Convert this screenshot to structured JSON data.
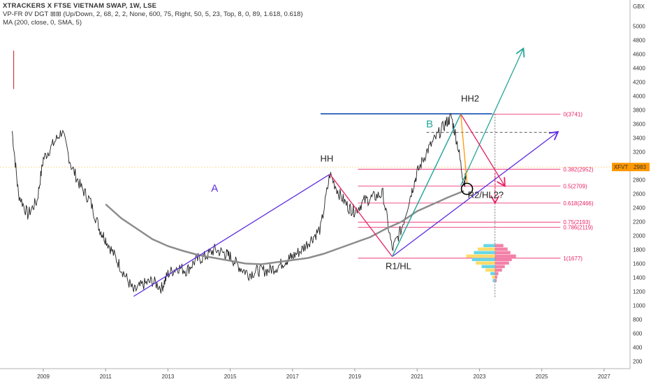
{
  "header": {
    "title": "XTRACKERS X FTSE VIETNAM SWAP, 1W, LSE",
    "indicator_vp": "VP-FR ϑV DGT ⊞⊞ (Up/Down, 2, 68, 2, 2, None, 600, 75, Right, 50, 5, 23, Top, 8, 0, 89, 1.618, 0.618)",
    "indicator_ma": "MA (200, close, 0, SMA, 5)"
  },
  "currency": "GBX",
  "price_tag": {
    "symbol": "XFVT",
    "value": "2983"
  },
  "colors": {
    "fib": "#e91e63",
    "purple": "#5b2be0",
    "teal": "#26a69a",
    "ma": "#8c8c8c",
    "orange": "#ff9800",
    "bar": "#222222"
  },
  "chart_data": {
    "type": "line",
    "title": "XTRACKERS X FTSE VIETNAM SWAP, 1W, LSE",
    "xlabel": "",
    "ylabel": "GBX",
    "x_ticks": [
      "2009",
      "2011",
      "2013",
      "2015",
      "2017",
      "2019",
      "2021",
      "2023",
      "2025",
      "2027"
    ],
    "y_ticks": [
      200,
      400,
      600,
      800,
      1000,
      1200,
      1400,
      1600,
      1800,
      2000,
      2200,
      2400,
      2600,
      2800,
      3000,
      3200,
      3400,
      3600,
      3800,
      4000,
      4200,
      4400,
      4600,
      4800,
      5000
    ],
    "ylim": [
      100,
      5300
    ],
    "xlim": [
      2008.0,
      2027.9
    ],
    "price_series": {
      "name": "",
      "x": [
        2008.0,
        2008.2,
        2008.5,
        2008.8,
        2009.0,
        2009.3,
        2009.6,
        2009.9,
        2010.2,
        2010.5,
        2010.8,
        2011.0,
        2011.3,
        2011.6,
        2011.9,
        2012.2,
        2012.5,
        2012.8,
        2013.0,
        2013.3,
        2013.6,
        2013.9,
        2014.2,
        2014.5,
        2014.8,
        2015.0,
        2015.3,
        2015.6,
        2015.9,
        2016.2,
        2016.5,
        2016.8,
        2017.0,
        2017.3,
        2017.6,
        2017.9,
        2018.2,
        2018.5,
        2018.8,
        2019.0,
        2019.3,
        2019.6,
        2019.9,
        2020.2,
        2020.5,
        2020.8,
        2021.0,
        2021.3,
        2021.6,
        2021.9,
        2022.1,
        2022.3,
        2022.5,
        2022.6
      ],
      "y": [
        3500,
        2600,
        2300,
        2500,
        3100,
        3300,
        3500,
        3000,
        2700,
        2500,
        2100,
        1950,
        1700,
        1450,
        1200,
        1300,
        1350,
        1250,
        1450,
        1550,
        1500,
        1650,
        1700,
        1800,
        1750,
        1700,
        1550,
        1450,
        1500,
        1500,
        1550,
        1650,
        1700,
        1800,
        1950,
        2100,
        2880,
        2600,
        2400,
        2350,
        2500,
        2550,
        2600,
        1800,
        2100,
        2600,
        2900,
        3200,
        3400,
        3600,
        3700,
        3300,
        2750,
        2900
      ]
    },
    "ma_series": {
      "name": "",
      "x": [
        2011.0,
        2011.5,
        2012.0,
        2012.5,
        2013.0,
        2013.5,
        2014.0,
        2014.5,
        2015.0,
        2015.5,
        2016.0,
        2016.5,
        2017.0,
        2017.5,
        2018.0,
        2018.5,
        2019.0,
        2019.5,
        2020.0,
        2020.5,
        2021.0,
        2021.5,
        2022.0,
        2022.5
      ],
      "y": [
        2450,
        2250,
        2100,
        1950,
        1850,
        1780,
        1720,
        1680,
        1640,
        1600,
        1590,
        1620,
        1650,
        1680,
        1740,
        1820,
        1900,
        1980,
        2100,
        2200,
        2350,
        2450,
        2550,
        2640
      ]
    },
    "fib_levels": [
      {
        "ratio": "0",
        "value": 3741,
        "label": "0(3741)"
      },
      {
        "ratio": "0.382",
        "value": 2952,
        "label": "0.382(2952)"
      },
      {
        "ratio": "0.5",
        "value": 2709,
        "label": "0.5(2709)"
      },
      {
        "ratio": "0.618",
        "value": 2466,
        "label": "0.618(2466)"
      },
      {
        "ratio": "0.75",
        "value": 2193,
        "label": "0.75(2193)"
      },
      {
        "ratio": "0.786",
        "value": 2119,
        "label": "0.786(2119)"
      },
      {
        "ratio": "1",
        "value": 1677,
        "label": "1(1677)"
      }
    ],
    "annotations": [
      {
        "text": "A",
        "x": 2014.5,
        "y": 2630,
        "color": "#5b2be0"
      },
      {
        "text": "HH",
        "x": 2018.1,
        "y": 3060,
        "color": "#222222"
      },
      {
        "text": "B",
        "x": 2021.4,
        "y": 3550,
        "color": "#26a69a"
      },
      {
        "text": "HH2",
        "x": 2022.7,
        "y": 3920,
        "color": "#222222"
      },
      {
        "text": "R1/HL",
        "x": 2020.4,
        "y": 1520,
        "color": "#222222"
      },
      {
        "text": "R2/HL2?",
        "x": 2023.2,
        "y": 2540,
        "color": "#222222"
      }
    ],
    "trend_lines": [
      {
        "name": "channel-lower",
        "color": "#5b2be0",
        "points": [
          [
            2011.9,
            1130
          ],
          [
            2018.2,
            2880
          ]
        ]
      },
      {
        "name": "rising-support",
        "color": "#5b2be0",
        "points": [
          [
            2020.2,
            1700
          ],
          [
            2025.5,
            3480
          ]
        ]
      },
      {
        "name": "wave-b-up",
        "color": "#26a69a",
        "points": [
          [
            2020.2,
            1700
          ],
          [
            2022.4,
            3741
          ]
        ]
      },
      {
        "name": "target-arrow",
        "color": "#26a69a",
        "points": [
          [
            2022.4,
            2720
          ],
          [
            2024.4,
            4670
          ]
        ]
      },
      {
        "name": "drop-hh",
        "color": "#e91e63",
        "points": [
          [
            2018.2,
            2880
          ],
          [
            2020.2,
            1700
          ]
        ]
      },
      {
        "name": "drop-hh2",
        "color": "#e91e63",
        "points": [
          [
            2022.4,
            3741
          ],
          [
            2023.8,
            2720
          ]
        ]
      },
      {
        "name": "fib-swing",
        "color": "#ff9800",
        "points": [
          [
            2022.4,
            3741
          ],
          [
            2022.6,
            2760
          ]
        ]
      }
    ]
  }
}
